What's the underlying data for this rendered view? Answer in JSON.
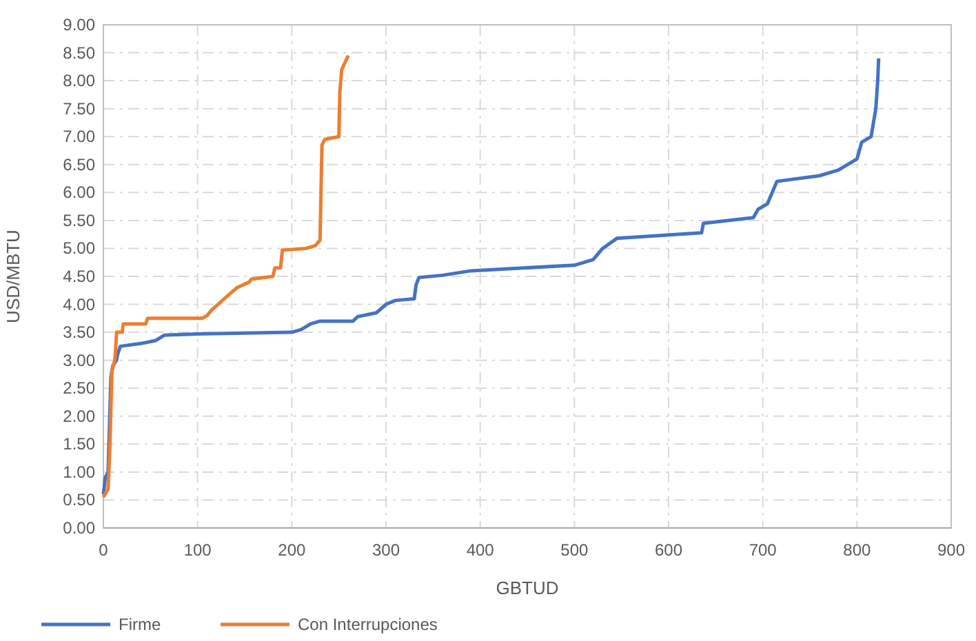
{
  "chart_data": {
    "type": "line",
    "xlabel": "GBTUD",
    "ylabel": "USD/MBTU",
    "xlim": [
      0,
      900
    ],
    "ylim": [
      0,
      9
    ],
    "xticks": [
      0,
      100,
      200,
      300,
      400,
      500,
      600,
      700,
      800,
      900
    ],
    "yticks": [
      {
        "value": 0,
        "label": "0.00"
      },
      {
        "value": 0.5,
        "label": "0.50"
      },
      {
        "value": 1,
        "label": "1.00"
      },
      {
        "value": 1.5,
        "label": "1.50"
      },
      {
        "value": 2,
        "label": "2.00"
      },
      {
        "value": 2.5,
        "label": "2.50"
      },
      {
        "value": 3,
        "label": "3.00"
      },
      {
        "value": 3.5,
        "label": "3.50"
      },
      {
        "value": 4,
        "label": "4.00"
      },
      {
        "value": 4.5,
        "label": "4.50"
      },
      {
        "value": 5,
        "label": "5.00"
      },
      {
        "value": 5.5,
        "label": "5.50"
      },
      {
        "value": 6,
        "label": "6.00"
      },
      {
        "value": 6.5,
        "label": "6.50"
      },
      {
        "value": 7,
        "label": "7.00"
      },
      {
        "value": 7.5,
        "label": "7.50"
      },
      {
        "value": 8,
        "label": "8.00"
      },
      {
        "value": 8.5,
        "label": "8.50"
      },
      {
        "value": 9,
        "label": "9.00"
      }
    ],
    "grid": true,
    "legend": "bottom",
    "marker": "none",
    "line_style": "solid",
    "series": [
      {
        "name": "Firme",
        "color": "#4472c4",
        "x": [
          0,
          2,
          5,
          8,
          10,
          14,
          15,
          18,
          40,
          55,
          65,
          100,
          200,
          210,
          220,
          230,
          265,
          270,
          290,
          300,
          310,
          330,
          332,
          335,
          360,
          390,
          500,
          520,
          530,
          545,
          635,
          637,
          690,
          695,
          705,
          710,
          715,
          760,
          780,
          800,
          805,
          815,
          820,
          822,
          823
        ],
        "values": [
          0.6,
          0.9,
          1.0,
          2.7,
          2.9,
          3.0,
          3.1,
          3.25,
          3.3,
          3.35,
          3.45,
          3.47,
          3.5,
          3.55,
          3.65,
          3.7,
          3.7,
          3.78,
          3.85,
          4.0,
          4.07,
          4.1,
          4.35,
          4.48,
          4.52,
          4.6,
          4.7,
          4.8,
          5.0,
          5.18,
          5.28,
          5.45,
          5.55,
          5.7,
          5.8,
          6.0,
          6.2,
          6.3,
          6.4,
          6.6,
          6.9,
          7.0,
          7.5,
          8.0,
          8.4
        ]
      },
      {
        "name": "Con Interrupciones",
        "color": "#ed7d31",
        "x": [
          0,
          5,
          7,
          9,
          12,
          13,
          14,
          20,
          21,
          45,
          47,
          105,
          110,
          115,
          125,
          135,
          142,
          155,
          157,
          180,
          182,
          188,
          190,
          215,
          225,
          230,
          232,
          235,
          250,
          251,
          253,
          260
        ],
        "values": [
          0.55,
          0.7,
          1.5,
          2.8,
          3.0,
          3.2,
          3.5,
          3.5,
          3.65,
          3.65,
          3.75,
          3.75,
          3.8,
          3.9,
          4.05,
          4.2,
          4.3,
          4.4,
          4.45,
          4.5,
          4.65,
          4.65,
          4.97,
          5.0,
          5.05,
          5.15,
          6.85,
          6.95,
          7.0,
          7.8,
          8.2,
          8.45
        ]
      }
    ]
  }
}
